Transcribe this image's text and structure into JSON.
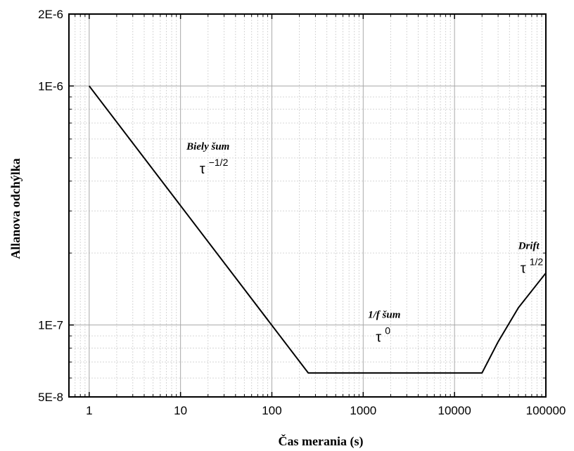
{
  "chart_data": {
    "type": "line",
    "title": "",
    "xlabel": "Čas merania (s)",
    "ylabel": "Allanova odchýlka",
    "x_scale": "log",
    "y_scale": "log",
    "xlim": [
      0.6,
      100000
    ],
    "ylim": [
      5e-08,
      2e-06
    ],
    "grid": true,
    "legend": "none",
    "x_ticks": [
      {
        "value": 1,
        "label": "1"
      },
      {
        "value": 10,
        "label": "10"
      },
      {
        "value": 100,
        "label": "100"
      },
      {
        "value": 1000,
        "label": "1000"
      },
      {
        "value": 10000,
        "label": "10000"
      },
      {
        "value": 100000,
        "label": "100000"
      }
    ],
    "y_ticks": [
      {
        "value": 5e-08,
        "label": "5E-8"
      },
      {
        "value": 1e-07,
        "label": "1E-7"
      },
      {
        "value": 1e-06,
        "label": "1E-6"
      },
      {
        "value": 2e-06,
        "label": "2E-6"
      }
    ],
    "series": [
      {
        "color": "#000000",
        "points": [
          [
            1,
            1e-06
          ],
          [
            250,
            6.3e-08
          ],
          [
            20000,
            6.3e-08
          ],
          [
            30000,
            8.5e-08
          ],
          [
            50000,
            1.18e-07
          ],
          [
            100000,
            1.65e-07
          ]
        ]
      }
    ],
    "annotations": [
      {
        "name": "biely-sum",
        "label": "Biely šum",
        "tau": "τ",
        "exponent": "−1/2",
        "x": 20,
        "y": 4.3e-07
      },
      {
        "name": "flicker-sum",
        "label": "1/f šum",
        "tau": "τ",
        "exponent": "0",
        "x": 1700,
        "y": 8.5e-08
      },
      {
        "name": "drift",
        "label": "Drift",
        "tau": "τ",
        "exponent": "1/2",
        "x": 65000,
        "y": 1.65e-07
      }
    ]
  }
}
